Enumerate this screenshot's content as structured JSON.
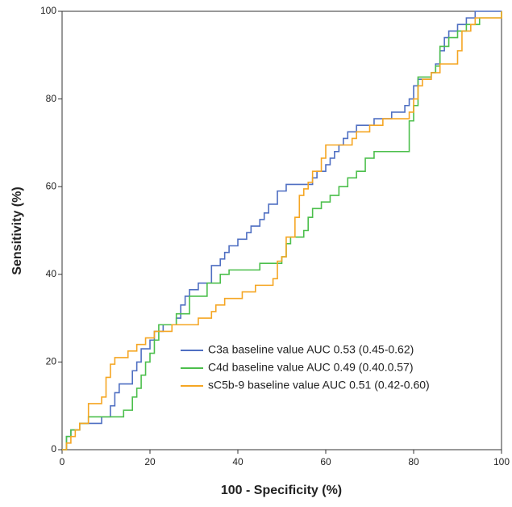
{
  "chart_data": {
    "type": "line",
    "step": "hv",
    "x_label": "100 - Specificity (%)",
    "y_label": "Sensitivity (%)",
    "xlim": [
      0,
      100
    ],
    "ylim": [
      0,
      100
    ],
    "xticks": [
      0,
      20,
      40,
      60,
      80,
      100
    ],
    "yticks": [
      0,
      20,
      40,
      60,
      80,
      100
    ],
    "grid": false,
    "legend": "lower right",
    "series": [
      {
        "name": "C3a baseline value AUC 0.53 (0.45-0.62)",
        "color": "#4f6fc2",
        "x": [
          0,
          1,
          2,
          4,
          9,
          11,
          12,
          13,
          16,
          17,
          18,
          20,
          21,
          23,
          26,
          27,
          28,
          29,
          31,
          34,
          36,
          37,
          38,
          40,
          42,
          43,
          45,
          46,
          47,
          49,
          51,
          57,
          58,
          60,
          61,
          62,
          63,
          64,
          65,
          67,
          71,
          75,
          78,
          79,
          80,
          81,
          84,
          85,
          86,
          87,
          88,
          90,
          92,
          94,
          100
        ],
        "values": [
          0,
          3,
          4.5,
          6,
          7.5,
          10,
          13,
          15,
          18,
          20,
          23,
          25,
          27,
          28.5,
          30,
          33,
          35,
          36.5,
          38,
          42,
          43.5,
          45,
          46.5,
          48,
          49.5,
          51,
          52.5,
          54,
          56,
          59,
          60.5,
          62,
          63.5,
          65,
          66.5,
          68,
          69.5,
          71,
          72.5,
          74,
          75.5,
          77,
          78.5,
          80,
          83,
          84.5,
          86,
          88,
          91,
          94,
          95.5,
          97,
          98.5,
          100,
          100
        ]
      },
      {
        "name": "C4d baseline value AUC 0.49 (0.40.0.57)",
        "color": "#4cbf4c",
        "x": [
          0,
          1,
          2,
          4,
          6,
          14,
          16,
          17,
          18,
          19,
          20,
          21,
          22,
          26,
          29,
          33,
          36,
          38,
          45,
          50,
          51,
          52,
          55,
          56,
          57,
          59,
          61,
          63,
          65,
          67,
          69,
          71,
          79,
          80,
          81,
          84,
          85,
          86,
          88,
          90,
          92,
          95,
          100
        ],
        "values": [
          0,
          3,
          4.5,
          6,
          7.5,
          9,
          12,
          14,
          17,
          20,
          22,
          25,
          28.5,
          31,
          35,
          38,
          40,
          41,
          42.5,
          44,
          47,
          48.5,
          50,
          53,
          55,
          56.5,
          58,
          60,
          62,
          63.5,
          66.5,
          68,
          75,
          78.5,
          85,
          86,
          87.5,
          92,
          94,
          95.5,
          97,
          98.5,
          100
        ]
      },
      {
        "name": "sC5b-9 baseline value AUC 0.51 (0.42-0.60)",
        "color": "#f5a623",
        "x": [
          0,
          1,
          2,
          3,
          4,
          6,
          9,
          10,
          11,
          12,
          15,
          17,
          19,
          21,
          25,
          31,
          34,
          35,
          37,
          41,
          44,
          48,
          49,
          50,
          51,
          53,
          54,
          55,
          56,
          57,
          59,
          60,
          66,
          67,
          70,
          73,
          79,
          80,
          81,
          82,
          84,
          86,
          90,
          91,
          93,
          94,
          100
        ],
        "values": [
          0,
          1.5,
          3,
          4.5,
          6,
          10.5,
          12,
          16.5,
          19.5,
          21,
          22.5,
          24,
          25.5,
          27,
          28.5,
          30,
          31.5,
          33,
          34.5,
          36,
          37.5,
          39,
          43,
          44,
          48.5,
          53,
          58,
          59.5,
          61,
          63.5,
          66.5,
          69.5,
          71,
          72.5,
          74,
          75.5,
          77,
          80,
          83,
          84.5,
          86,
          88,
          91,
          95.5,
          97,
          98.5,
          100
        ]
      }
    ]
  }
}
